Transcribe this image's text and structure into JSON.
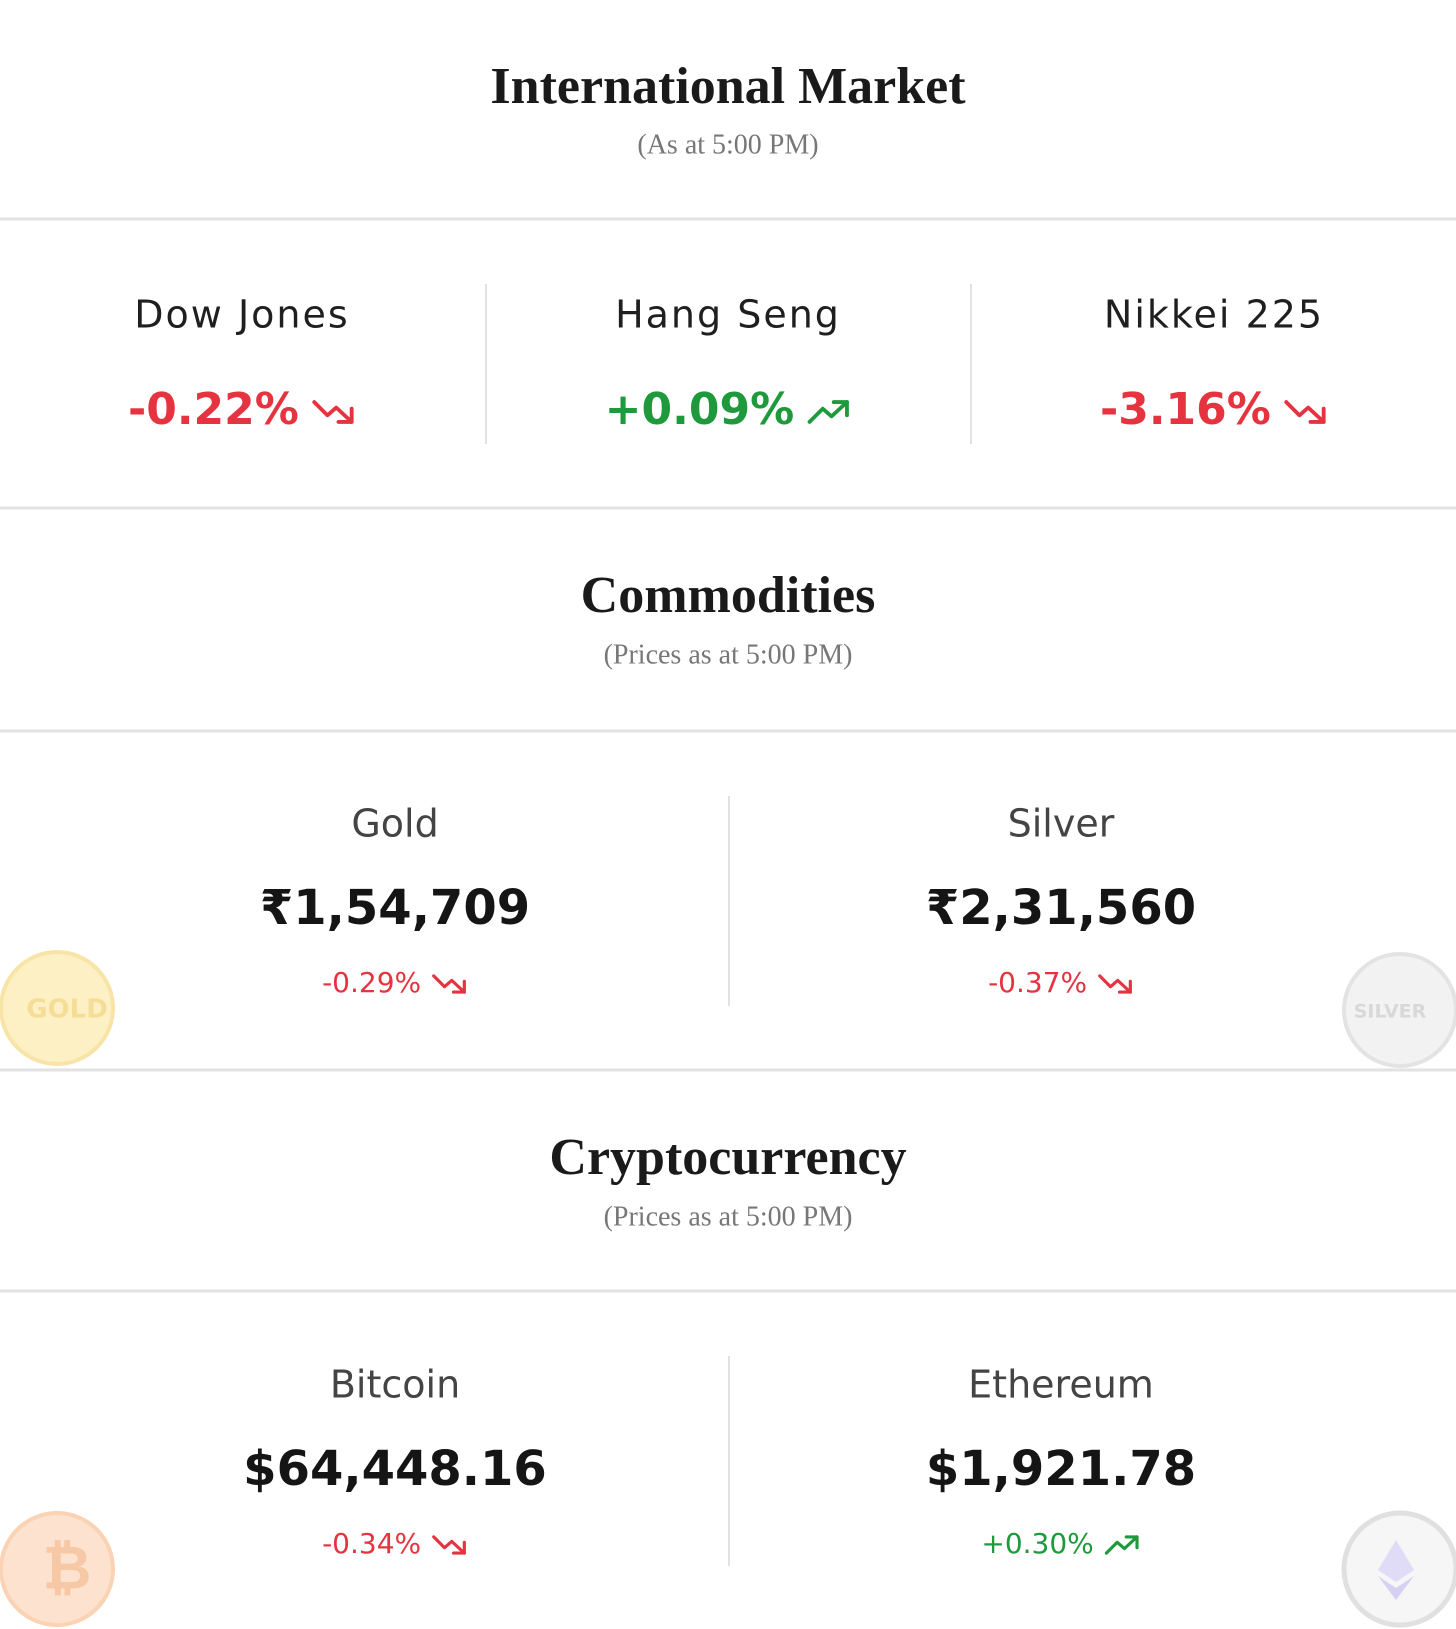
{
  "header": {
    "title": "International Market",
    "subtitle": "(As at 5:00 PM)"
  },
  "indices": [
    {
      "name": "Dow Jones",
      "change": "-0.22%"
    },
    {
      "name": "Hang Seng",
      "change": "+0.09%"
    },
    {
      "name": "Nikkei 225",
      "change": "-3.16%"
    }
  ],
  "commodities": {
    "title": "Commodities",
    "subtitle": "(Prices as at 5:00 PM)",
    "items": [
      {
        "name": "Gold",
        "price": "₹1,54,709",
        "change": "-0.29%",
        "icon_label": "GOLD"
      },
      {
        "name": "Silver",
        "price": "₹2,31,560",
        "change": "-0.37%",
        "icon_label": "SILVER"
      }
    ]
  },
  "crypto": {
    "title": "Cryptocurrency",
    "subtitle": "(Prices as at 5:00 PM)",
    "items": [
      {
        "name": "Bitcoin",
        "price": "$64,448.16",
        "change": "-0.34%",
        "icon_label": "₿"
      },
      {
        "name": "Ethereum",
        "price": "$1,921.78",
        "change": "+0.30%"
      }
    ]
  },
  "colors": {
    "down": "#e5333f",
    "up": "#1e9a3c"
  }
}
